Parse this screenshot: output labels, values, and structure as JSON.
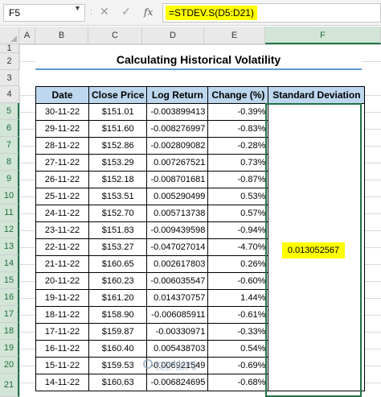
{
  "formula_bar": {
    "name_box": "F5",
    "formula": "=STDEV.S(D5:D21)",
    "separator": ":",
    "cancel_icon": "close-icon",
    "enter_icon": "checkmark-icon",
    "function_icon": "fx-icon",
    "fx_label": "fx"
  },
  "sheet": {
    "columns": [
      "A",
      "B",
      "C",
      "D",
      "E",
      "F"
    ],
    "selected_column": "F",
    "rows": [
      "1",
      "2",
      "3",
      "4",
      "5",
      "6",
      "7",
      "8",
      "9",
      "10",
      "11",
      "12",
      "13",
      "14",
      "15",
      "16",
      "17",
      "18",
      "19",
      "20",
      "21"
    ],
    "selected_rows": [
      "5",
      "6",
      "7",
      "8",
      "9",
      "10",
      "11",
      "12",
      "13",
      "14",
      "15",
      "16",
      "17",
      "18",
      "19",
      "20",
      "21"
    ],
    "grid_color": "#dadada",
    "selection_color": "#217346"
  },
  "title": "Calculating Historical Volatility",
  "table": {
    "headers": {
      "date": "Date",
      "close": "Close Price",
      "log": "Log Return",
      "change": "Change (%)",
      "sd": "Standard Deviation"
    },
    "header_fill": "#bdd7ee",
    "rows": [
      {
        "date": "30-11-22",
        "close": "$151.01",
        "log": "-0.003899413",
        "change": "-0.39%"
      },
      {
        "date": "29-11-22",
        "close": "$151.60",
        "log": "-0.008276997",
        "change": "-0.83%"
      },
      {
        "date": "28-11-22",
        "close": "$152.86",
        "log": "-0.002809082",
        "change": "-0.28%"
      },
      {
        "date": "27-11-22",
        "close": "$153.29",
        "log": "0.007267521",
        "change": "0.73%"
      },
      {
        "date": "26-11-22",
        "close": "$152.18",
        "log": "-0.008701681",
        "change": "-0.87%"
      },
      {
        "date": "25-11-22",
        "close": "$153.51",
        "log": "0.005290499",
        "change": "0.53%"
      },
      {
        "date": "24-11-22",
        "close": "$152.70",
        "log": "0.005713738",
        "change": "0.57%"
      },
      {
        "date": "23-11-22",
        "close": "$151.83",
        "log": "-0.009439598",
        "change": "-0.94%"
      },
      {
        "date": "22-11-22",
        "close": "$153.27",
        "log": "-0.047027014",
        "change": "-4.70%"
      },
      {
        "date": "21-11-22",
        "close": "$160.65",
        "log": "0.002617803",
        "change": "0.26%"
      },
      {
        "date": "20-11-22",
        "close": "$160.23",
        "log": "-0.006035547",
        "change": "-0.60%"
      },
      {
        "date": "19-11-22",
        "close": "$161.20",
        "log": "0.014370757",
        "change": "1.44%"
      },
      {
        "date": "18-11-22",
        "close": "$158.90",
        "log": "-0.006085911",
        "change": "-0.61%"
      },
      {
        "date": "17-11-22",
        "close": "$159.87",
        "log": "-0.00330971",
        "change": "-0.33%"
      },
      {
        "date": "16-11-22",
        "close": "$160.40",
        "log": "0.005438703",
        "change": "0.54%"
      },
      {
        "date": "15-11-22",
        "close": "$159.53",
        "log": "-0.006921549",
        "change": "-0.69%"
      },
      {
        "date": "14-11-22",
        "close": "$160.63",
        "log": "-0.006824695",
        "change": "-0.68%"
      }
    ]
  },
  "standard_deviation": {
    "value": "0.013052567",
    "highlight": "#ffff00"
  },
  "watermark": {
    "text": "exceldemy",
    "subtext": "EXCEL · DATA · BI"
  }
}
